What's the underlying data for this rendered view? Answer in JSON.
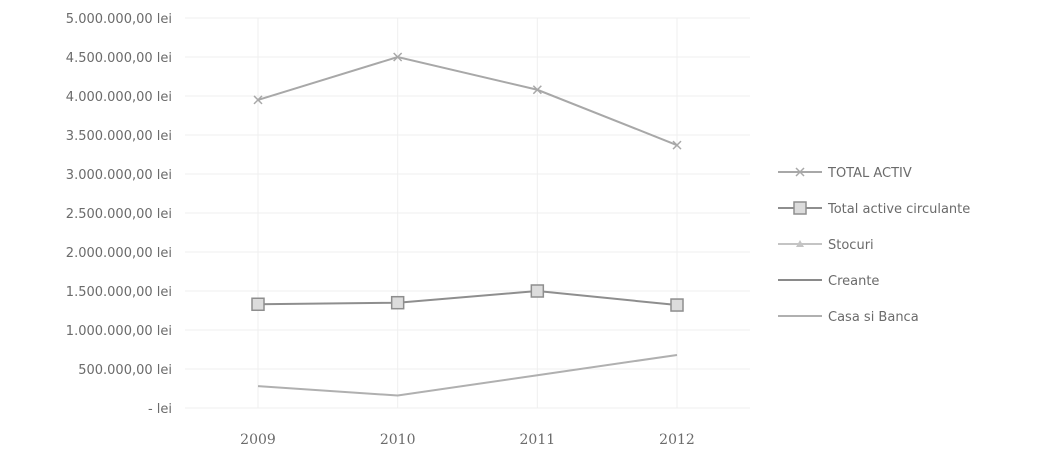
{
  "chart_data": {
    "type": "line",
    "x": [
      "2009",
      "2010",
      "2011",
      "2012"
    ],
    "ylim": [
      0,
      5000000
    ],
    "yticks": [
      {
        "value": 5000000,
        "label": "5.000.000,00 lei"
      },
      {
        "value": 4500000,
        "label": "4.500.000,00 lei"
      },
      {
        "value": 4000000,
        "label": "4.000.000,00 lei"
      },
      {
        "value": 3500000,
        "label": "3.500.000,00 lei"
      },
      {
        "value": 3000000,
        "label": "3.000.000,00 lei"
      },
      {
        "value": 2500000,
        "label": "2.500.000,00 lei"
      },
      {
        "value": 2000000,
        "label": "2.000.000,00 lei"
      },
      {
        "value": 1500000,
        "label": "1.500.000,00 lei"
      },
      {
        "value": 1000000,
        "label": "1.000.000,00 lei"
      },
      {
        "value": 500000,
        "label": "500.000,00 lei"
      },
      {
        "value": 0,
        "label": "- lei"
      }
    ],
    "grid": true,
    "legend_position": "right",
    "series": [
      {
        "name": "TOTAL ACTIV",
        "values": [
          3950000,
          4500000,
          4080000,
          3370000
        ],
        "color": "#a8a8a8",
        "marker": "x"
      },
      {
        "name": "Total active circulante",
        "values": [
          1330000,
          1350000,
          1500000,
          1320000
        ],
        "color": "#8e8e8e",
        "marker": "square"
      },
      {
        "name": "Stocuri",
        "values": [
          null,
          null,
          null,
          null
        ],
        "color": "#c4c4c4",
        "marker": "triangle"
      },
      {
        "name": "Creante",
        "values": [
          null,
          null,
          null,
          null
        ],
        "color": "#8a8a8a",
        "marker": "none"
      },
      {
        "name": "Casa si Banca",
        "values": [
          280000,
          160000,
          420000,
          680000
        ],
        "color": "#b0b0b0",
        "marker": "none"
      }
    ]
  }
}
